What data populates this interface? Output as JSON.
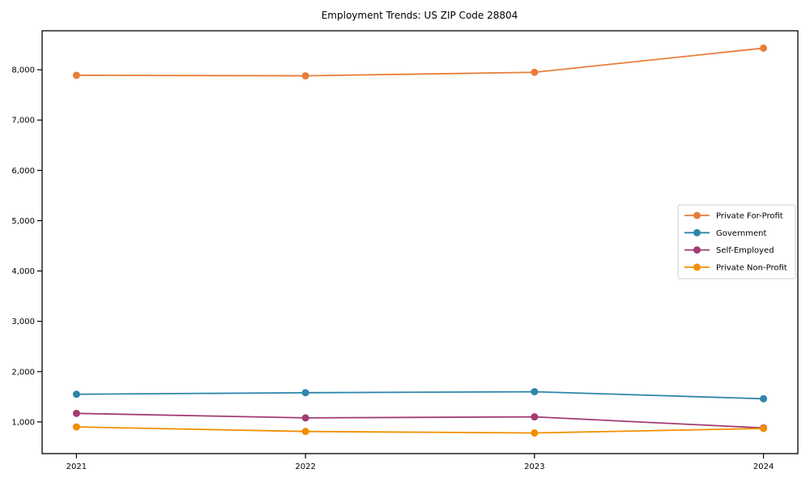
{
  "chart_data": {
    "type": "line",
    "title": "Employment Trends: US ZIP Code 28804",
    "xlabel": "",
    "ylabel": "",
    "categories": [
      "2021",
      "2022",
      "2023",
      "2024"
    ],
    "x_years": [
      2021,
      2022,
      2023,
      2024
    ],
    "series": [
      {
        "name": "Private For-Profit",
        "color": "#E87D3B",
        "values": [
          7890,
          7880,
          7950,
          8430
        ]
      },
      {
        "name": "Government",
        "color": "#2E86AB",
        "values": [
          1550,
          1580,
          1600,
          1460
        ]
      },
      {
        "name": "Self-Employed",
        "color": "#A23B72",
        "values": [
          1170,
          1080,
          1100,
          880
        ]
      },
      {
        "name": "Private Non-Profit",
        "color": "#F18F01",
        "values": [
          900,
          810,
          780,
          870
        ]
      }
    ],
    "yticks": {
      "values": [
        1000,
        2000,
        3000,
        4000,
        5000,
        6000,
        7000,
        8000
      ],
      "labels": [
        "1,000",
        "2,000",
        "3,000",
        "4,000",
        "5,000",
        "6,000",
        "7,000",
        "8,000"
      ]
    },
    "ylim": [
      370,
      8775
    ],
    "xlim_years": [
      2020.85,
      2024.15
    ],
    "grid": false,
    "marker": "circle",
    "legend": {
      "position": "center-right"
    },
    "colors": {
      "axis": "#000000",
      "tick_text": "#000000",
      "legend_border": "#cccccc",
      "legend_background": "#ffffff",
      "plot_background": "#ffffff"
    }
  }
}
